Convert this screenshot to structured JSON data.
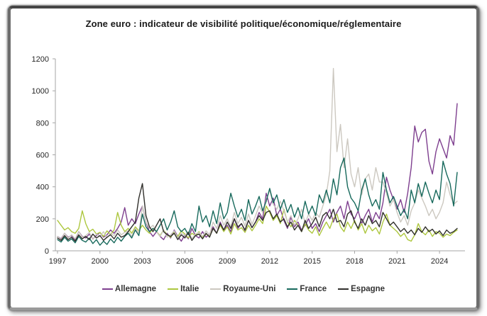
{
  "chart_data": {
    "type": "line",
    "title": "Zone euro : indicateur de visibilité politique/économique/réglementaire",
    "xlabel": "",
    "ylabel": "",
    "x_start": 1997.0,
    "x_step": 0.25,
    "xlim": [
      1996.85,
      2025.9
    ],
    "ylim": [
      0,
      1200
    ],
    "y_ticks": [
      0,
      200,
      400,
      600,
      800,
      1000,
      1200
    ],
    "x_ticks": [
      1997,
      2000,
      2003,
      2006,
      2009,
      2012,
      2015,
      2018,
      2021,
      2024
    ],
    "grid": false,
    "legend_position": "bottom",
    "axis_color": "#a6a6a6",
    "series": [
      {
        "name": "Allemagne",
        "color": "#7E3F8F",
        "values": [
          90,
          75,
          110,
          85,
          95,
          70,
          120,
          90,
          80,
          105,
          75,
          95,
          115,
          85,
          100,
          130,
          110,
          140,
          180,
          270,
          160,
          200,
          170,
          230,
          280,
          180,
          120,
          90,
          120,
          90,
          70,
          110,
          80,
          130,
          90,
          60,
          100,
          75,
          140,
          95,
          80,
          120,
          85,
          105,
          150,
          110,
          180,
          130,
          160,
          120,
          200,
          140,
          170,
          125,
          190,
          145,
          180,
          240,
          200,
          360,
          280,
          330,
          220,
          260,
          190,
          140,
          210,
          150,
          180,
          130,
          160,
          200,
          140,
          170,
          120,
          180,
          220,
          260,
          180,
          240,
          280,
          200,
          310,
          230,
          200,
          250,
          170,
          220,
          260,
          180,
          240,
          200,
          300,
          460,
          380,
          320,
          260,
          320,
          240,
          360,
          520,
          780,
          680,
          740,
          760,
          560,
          480,
          620,
          700,
          640,
          580,
          720,
          660,
          920
        ]
      },
      {
        "name": "Italie",
        "color": "#ADC73F",
        "values": [
          190,
          160,
          130,
          145,
          120,
          110,
          140,
          250,
          170,
          120,
          135,
          105,
          115,
          90,
          125,
          100,
          130,
          240,
          160,
          120,
          140,
          110,
          150,
          125,
          160,
          130,
          110,
          140,
          120,
          95,
          130,
          100,
          85,
          115,
          90,
          125,
          105,
          80,
          110,
          95,
          120,
          85,
          105,
          90,
          140,
          110,
          160,
          120,
          150,
          105,
          170,
          130,
          145,
          115,
          160,
          125,
          160,
          200,
          170,
          280,
          240,
          190,
          220,
          170,
          260,
          180,
          150,
          190,
          160,
          120,
          170,
          130,
          110,
          150,
          95,
          140,
          180,
          140,
          200,
          230,
          150,
          120,
          180,
          140,
          190,
          130,
          170,
          110,
          160,
          125,
          145,
          105,
          180,
          230,
          160,
          140,
          120,
          90,
          110,
          70,
          60,
          100,
          170,
          120,
          100,
          130,
          90,
          120,
          110,
          85,
          105,
          95,
          115,
          130
        ]
      },
      {
        "name": "Royaume-Uni",
        "color": "#CCC8C0",
        "values": [
          90,
          70,
          110,
          80,
          100,
          75,
          120,
          85,
          95,
          115,
          70,
          105,
          90,
          120,
          80,
          110,
          95,
          130,
          100,
          115,
          125,
          90,
          140,
          110,
          280,
          180,
          140,
          160,
          120,
          90,
          130,
          85,
          100,
          125,
          80,
          110,
          95,
          120,
          75,
          105,
          115,
          90,
          125,
          100,
          180,
          140,
          220,
          160,
          200,
          150,
          240,
          170,
          210,
          155,
          230,
          165,
          220,
          280,
          240,
          320,
          380,
          290,
          260,
          310,
          250,
          180,
          220,
          160,
          200,
          260,
          170,
          230,
          190,
          240,
          210,
          280,
          350,
          500,
          1140,
          620,
          790,
          520,
          700,
          480,
          400,
          520,
          350,
          450,
          480,
          380,
          520,
          430,
          430,
          360,
          280,
          320,
          240,
          180,
          220,
          160,
          250,
          300,
          380,
          330,
          280,
          220,
          260,
          200,
          240,
          300,
          430,
          350,
          290,
          310
        ]
      },
      {
        "name": "France",
        "color": "#17695C",
        "values": [
          70,
          55,
          85,
          60,
          75,
          50,
          90,
          65,
          55,
          80,
          45,
          70,
          35,
          60,
          40,
          75,
          50,
          85,
          60,
          90,
          110,
          80,
          130,
          95,
          230,
          150,
          120,
          140,
          120,
          160,
          200,
          130,
          180,
          250,
          150,
          120,
          140,
          100,
          170,
          120,
          280,
          180,
          220,
          150,
          250,
          170,
          300,
          200,
          240,
          360,
          280,
          210,
          260,
          190,
          320,
          230,
          280,
          340,
          250,
          310,
          390,
          300,
          350,
          260,
          320,
          240,
          290,
          210,
          270,
          200,
          310,
          230,
          280,
          220,
          350,
          300,
          380,
          300,
          450,
          350,
          520,
          580,
          400,
          330,
          300,
          250,
          380,
          450,
          350,
          280,
          320,
          260,
          490,
          380,
          300,
          340,
          280,
          220,
          260,
          200,
          380,
          300,
          420,
          340,
          430,
          360,
          300,
          380,
          320,
          560,
          480,
          420,
          280,
          490
        ]
      },
      {
        "name": "Espagne",
        "color": "#31302C",
        "values": [
          80,
          65,
          95,
          70,
          85,
          60,
          100,
          75,
          90,
          70,
          105,
          80,
          95,
          65,
          85,
          100,
          75,
          110,
          85,
          95,
          120,
          150,
          180,
          330,
          420,
          220,
          150,
          120,
          160,
          200,
          120,
          100,
          90,
          110,
          70,
          100,
          80,
          115,
          65,
          95,
          105,
          75,
          110,
          85,
          140,
          110,
          170,
          130,
          180,
          140,
          200,
          150,
          170,
          130,
          190,
          145,
          180,
          220,
          190,
          240,
          250,
          200,
          230,
          180,
          200,
          150,
          180,
          130,
          160,
          120,
          190,
          140,
          170,
          210,
          150,
          220,
          240,
          200,
          260,
          180,
          190,
          150,
          230,
          250,
          180,
          140,
          200,
          160,
          220,
          170,
          190,
          150,
          240,
          200,
          160,
          180,
          150,
          120,
          140,
          110,
          130,
          100,
          140,
          115,
          150,
          120,
          135,
          105,
          125,
          95,
          130,
          110,
          120,
          140
        ]
      }
    ]
  }
}
